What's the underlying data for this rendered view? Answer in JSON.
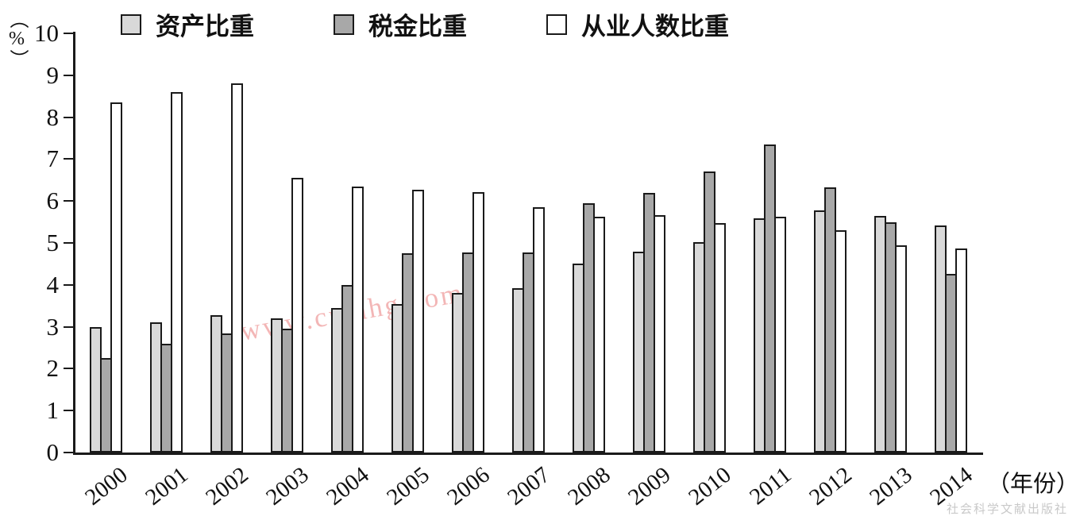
{
  "chart_data": {
    "type": "bar",
    "categories": [
      "2000",
      "2001",
      "2002",
      "2003",
      "2004",
      "2005",
      "2006",
      "2007",
      "2008",
      "2009",
      "2010",
      "2011",
      "2012",
      "2013",
      "2014"
    ],
    "series": [
      {
        "name": "资产比重",
        "color": "#d9d9d9",
        "values": [
          3.0,
          3.1,
          3.27,
          3.2,
          3.45,
          3.55,
          3.8,
          3.92,
          4.5,
          4.8,
          5.02,
          5.58,
          5.77,
          5.65,
          5.42
        ]
      },
      {
        "name": "税金比重",
        "color": "#a8a8a8",
        "values": [
          2.25,
          2.6,
          2.85,
          2.95,
          4.0,
          4.75,
          4.77,
          4.77,
          5.95,
          6.2,
          6.7,
          7.35,
          6.32,
          5.5,
          4.27
        ]
      },
      {
        "name": "从业人数比重",
        "color": "#ffffff",
        "values": [
          8.35,
          8.6,
          8.8,
          6.55,
          6.35,
          6.27,
          6.22,
          5.85,
          5.62,
          5.67,
          5.47,
          5.62,
          5.3,
          4.95,
          4.87
        ]
      }
    ],
    "ylabel": "（%）",
    "xlabel": "（年份）",
    "ylim": [
      0,
      10
    ],
    "yticks": [
      0,
      1,
      2,
      3,
      4,
      5,
      6,
      7,
      8,
      9,
      10
    ],
    "legend_position": "top",
    "grid": false,
    "bar_border_color": "#1a1a1a"
  },
  "watermark": "www.cnmhg.com",
  "publisher": "社会科学文献出版社"
}
